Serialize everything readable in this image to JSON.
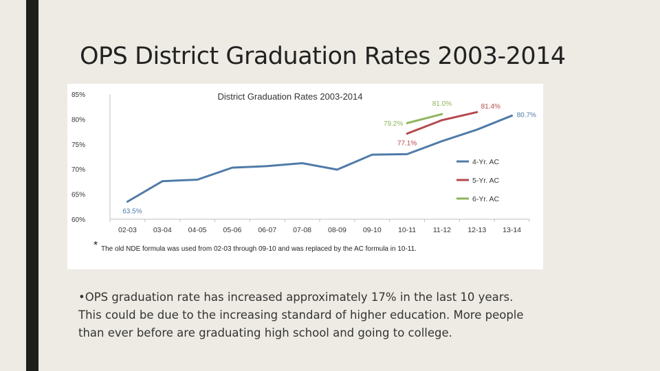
{
  "slide": {
    "title": "OPS District Graduation Rates 2003-2014",
    "body": "•OPS graduation rate has increased approximately 17% in the last 10 years. This could be due to the increasing standard of higher education. More people than ever before are graduating high school and going to college."
  },
  "chart_data": {
    "type": "line",
    "title": "District Graduation Rates 2003-2014",
    "categories": [
      "02-03",
      "03-04",
      "04-05",
      "05-06",
      "06-07",
      "07-08",
      "08-09",
      "09-10",
      "10-11",
      "11-12",
      "12-13",
      "13-14"
    ],
    "ylim": [
      60,
      85
    ],
    "yticks": [
      60,
      65,
      70,
      75,
      80,
      85
    ],
    "ytick_labels": [
      "60%",
      "65%",
      "70%",
      "75%",
      "80%",
      "85%"
    ],
    "grid": false,
    "legend": "right",
    "series": [
      {
        "name": "4-Yr. AC",
        "color": "#4f7ba8",
        "values": [
          63.5,
          67.6,
          67.9,
          70.3,
          70.6,
          71.2,
          69.9,
          72.9,
          73.0,
          75.6,
          77.9,
          80.7
        ]
      },
      {
        "name": "5-Yr. AC",
        "color": "#b5474b",
        "values": [
          null,
          null,
          null,
          null,
          null,
          null,
          null,
          null,
          77.1,
          79.8,
          81.4,
          null
        ]
      },
      {
        "name": "6-Yr. AC",
        "color": "#8db55a",
        "values": [
          null,
          null,
          null,
          null,
          null,
          null,
          null,
          null,
          79.2,
          81.0,
          null,
          null
        ]
      }
    ],
    "data_labels": [
      {
        "text": "63.5%",
        "series": 0,
        "index": 0,
        "color": "#4f7ba8"
      },
      {
        "text": "80.7%",
        "series": 0,
        "index": 11,
        "color": "#4f7ba8"
      },
      {
        "text": "77.1%",
        "series": 1,
        "index": 8,
        "color": "#b5474b"
      },
      {
        "text": "81.4%",
        "series": 1,
        "index": 10,
        "color": "#b5474b"
      },
      {
        "text": "79.2%",
        "series": 2,
        "index": 8,
        "color": "#8db55a"
      },
      {
        "text": "81.0%",
        "series": 2,
        "index": 9,
        "color": "#8db55a"
      }
    ],
    "footnote_mark": "*",
    "footnote": "The old NDE formula was used from 02-03 through 09-10 and was replaced by the AC formula in 10-11."
  }
}
